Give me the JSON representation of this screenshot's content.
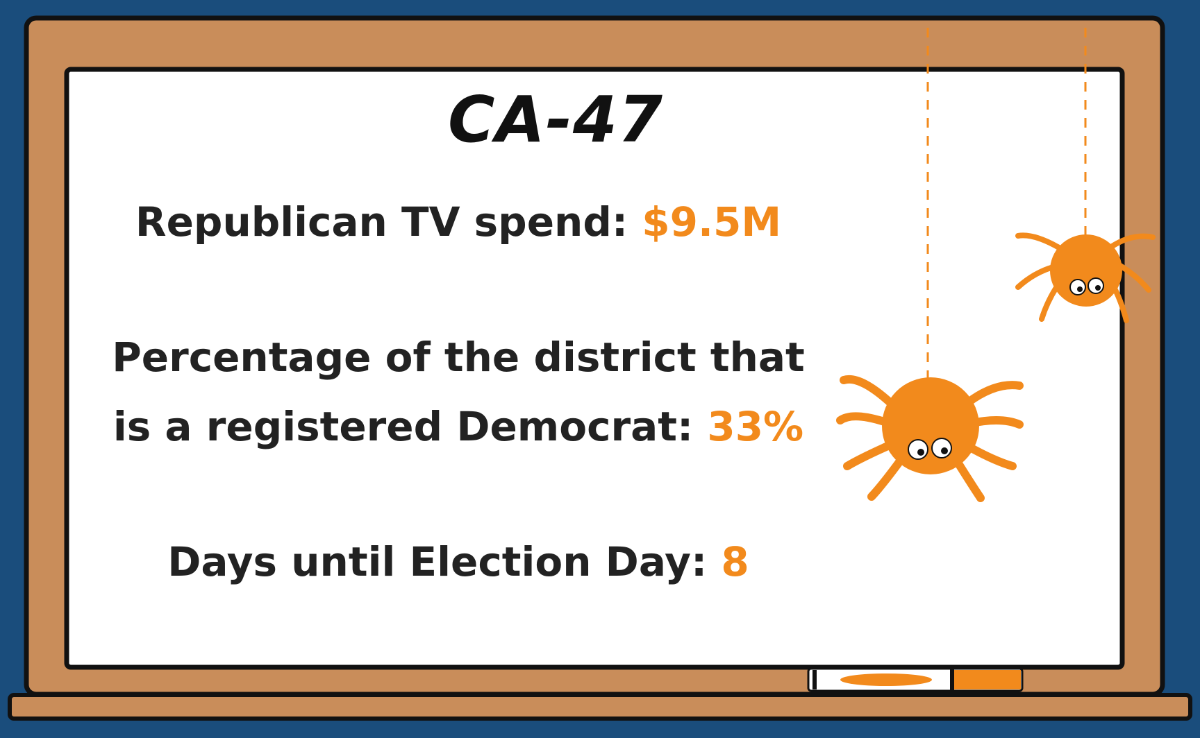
{
  "title": "CA-47",
  "stats": [
    {
      "label": "Republican TV spend:",
      "value": "$9.5M"
    },
    {
      "label_line1": "Percentage of the district that",
      "label_line2": "is a registered Democrat:",
      "value": "33%"
    },
    {
      "label": "Days until Election Day:",
      "value": "8"
    }
  ],
  "colors": {
    "background": "#1a4d7c",
    "frame": "#c98d5a",
    "board": "#ffffff",
    "accent": "#f28a1c",
    "text": "#222222"
  }
}
